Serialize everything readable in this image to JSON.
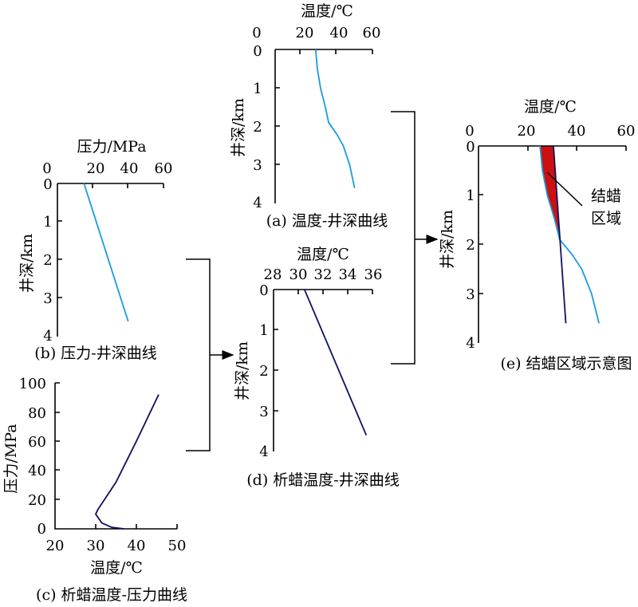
{
  "colors": {
    "temperature_curve": "#1a9be0",
    "wax_curve": "#101060",
    "wax_region": "#cc1010",
    "axes": "#000000"
  },
  "panels": {
    "a": {
      "caption": "(a) 温度-井深曲线",
      "x_axis_title": "温度/℃",
      "y_axis_title": "井深/km"
    },
    "b": {
      "caption": "(b) 压力-井深曲线",
      "x_axis_title": "压力/MPa",
      "y_axis_title": "井深/km"
    },
    "c": {
      "caption": "(c) 析蜡温度-压力曲线",
      "x_axis_title": "温度/℃",
      "y_axis_title": "压力/MPa"
    },
    "d": {
      "caption": "(d) 析蜡温度-井深曲线",
      "x_axis_title": "温度/℃",
      "y_axis_title": "井深/km"
    },
    "e": {
      "caption": "(e) 结蜡区域示意图",
      "x_axis_title": "温度/℃",
      "y_axis_title": "井深/km",
      "annotation_line1": "结蜡",
      "annotation_line2": "区域"
    }
  },
  "chart_data": [
    {
      "id": "a",
      "type": "line",
      "title": "(a) 温度-井深曲线",
      "xlabel": "温度/℃",
      "ylabel": "井深/km",
      "xlim": [
        0,
        60
      ],
      "ylim": [
        0,
        4
      ],
      "y_inverted": true,
      "x_axis_position": "top",
      "x_ticks": [
        "0",
        "20",
        "40",
        "60"
      ],
      "y_ticks": [
        "0",
        "1",
        "2",
        "3",
        "4"
      ],
      "series": [
        {
          "x": [
            25,
            26,
            28,
            31,
            33,
            38,
            42,
            46,
            49
          ],
          "y": [
            0,
            0.5,
            1.0,
            1.5,
            1.9,
            2.2,
            2.5,
            3.0,
            3.6
          ]
        }
      ]
    },
    {
      "id": "b",
      "type": "line",
      "title": "(b) 压力-井深曲线",
      "xlabel": "压力/MPa",
      "ylabel": "井深/km",
      "xlim": [
        0,
        60
      ],
      "ylim": [
        0,
        4
      ],
      "y_inverted": true,
      "x_axis_position": "top",
      "x_ticks": [
        "0",
        "20",
        "40",
        "60"
      ],
      "y_ticks": [
        "0",
        "1",
        "2",
        "3",
        "4"
      ],
      "series": [
        {
          "x": [
            15,
            40
          ],
          "y": [
            0,
            3.6
          ]
        }
      ]
    },
    {
      "id": "c",
      "type": "line",
      "title": "(c) 析蜡温度-压力曲线",
      "xlabel": "温度/℃",
      "ylabel": "压力/MPa",
      "xlim": [
        20,
        50
      ],
      "ylim": [
        0,
        100
      ],
      "x_ticks": [
        "20",
        "30",
        "40",
        "50"
      ],
      "y_ticks": [
        "0",
        "20",
        "40",
        "60",
        "80",
        "100"
      ],
      "series": [
        {
          "x": [
            37,
            34,
            31.5,
            30,
            30.5,
            35,
            40,
            45.5
          ],
          "y": [
            0,
            1,
            4,
            10,
            13,
            32,
            60,
            92
          ]
        }
      ]
    },
    {
      "id": "d",
      "type": "line",
      "title": "(d) 析蜡温度-井深曲线",
      "xlabel": "温度/℃",
      "ylabel": "井深/km",
      "xlim": [
        28,
        36
      ],
      "ylim": [
        0,
        4
      ],
      "y_inverted": true,
      "x_axis_position": "top",
      "x_ticks": [
        "28",
        "30",
        "32",
        "34",
        "36"
      ],
      "y_ticks": [
        "0",
        "1",
        "2",
        "3",
        "4"
      ],
      "series": [
        {
          "x": [
            30.5,
            35.5
          ],
          "y": [
            0,
            3.6
          ]
        }
      ]
    },
    {
      "id": "e",
      "type": "line",
      "title": "(e) 结蜡区域示意图",
      "xlabel": "温度/℃",
      "ylabel": "井深/km",
      "xlim": [
        0,
        60
      ],
      "ylim": [
        0,
        4
      ],
      "y_inverted": true,
      "x_axis_position": "top",
      "x_ticks": [
        "0",
        "20",
        "40",
        "60"
      ],
      "y_ticks": [
        "0",
        "1",
        "2",
        "3",
        "4"
      ],
      "series": [
        {
          "x": [
            25,
            26,
            28,
            31,
            33,
            38,
            42,
            46,
            49
          ],
          "y": [
            0,
            0.5,
            1.0,
            1.5,
            1.9,
            2.2,
            2.5,
            3.0,
            3.6
          ]
        },
        {
          "x": [
            30.5,
            35.5
          ],
          "y": [
            0,
            3.6
          ]
        }
      ],
      "shaded_region": "结蜡区域"
    }
  ]
}
